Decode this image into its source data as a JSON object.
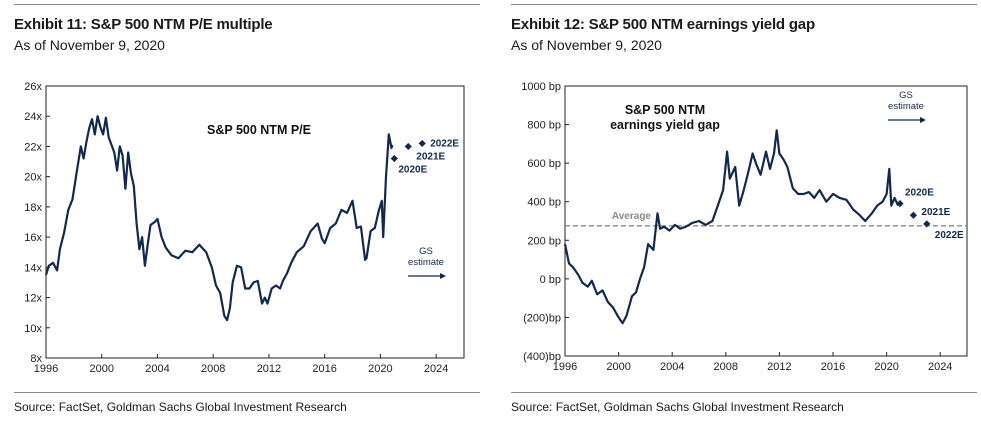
{
  "left": {
    "title": "Exhibit 11: S&P 500 NTM P/E multiple",
    "subtitle": "As of November 9, 2020",
    "source": "Source: FactSet, Goldman Sachs Global Investment Research",
    "chart_data": {
      "type": "line",
      "title": "S&P 500 NTM P/E",
      "xlim": [
        1996,
        2026
      ],
      "ylim": [
        8,
        26
      ],
      "x_ticks": [
        1996,
        2000,
        2004,
        2008,
        2012,
        2016,
        2020,
        2024
      ],
      "y_ticks": [
        8,
        10,
        12,
        14,
        16,
        18,
        20,
        22,
        24,
        26
      ],
      "y_tick_labels": [
        "8x",
        "10x",
        "12x",
        "14x",
        "16x",
        "18x",
        "20x",
        "22x",
        "24x",
        "26x"
      ],
      "series": [
        {
          "x": [
            1996.0,
            1996.2,
            1996.5,
            1996.8,
            1997.0,
            1997.3,
            1997.6,
            1997.9,
            1998.2,
            1998.5,
            1998.7,
            1998.9,
            1999.1,
            1999.3,
            1999.5,
            1999.7,
            1999.9,
            2000.1,
            2000.3,
            2000.5,
            2000.7,
            2000.9,
            2001.1,
            2001.3,
            2001.5,
            2001.7,
            2001.9,
            2002.1,
            2002.3,
            2002.5,
            2002.7,
            2002.9,
            2003.1,
            2003.3,
            2003.5,
            2003.8,
            2004.0,
            2004.3,
            2004.6,
            2005.0,
            2005.5,
            2006.0,
            2006.5,
            2007.0,
            2007.5,
            2007.9,
            2008.2,
            2008.5,
            2008.8,
            2009.0,
            2009.2,
            2009.4,
            2009.7,
            2010.0,
            2010.3,
            2010.6,
            2010.9,
            2011.2,
            2011.5,
            2011.7,
            2011.9,
            2012.2,
            2012.5,
            2012.8,
            2013.0,
            2013.3,
            2013.6,
            2014.0,
            2014.5,
            2015.0,
            2015.5,
            2015.8,
            2016.0,
            2016.4,
            2016.8,
            2017.2,
            2017.6,
            2018.0,
            2018.3,
            2018.6,
            2018.9,
            2019.0,
            2019.3,
            2019.6,
            2019.9,
            2020.1,
            2020.2,
            2020.4,
            2020.6,
            2020.8,
            2020.86
          ],
          "y": [
            13.5,
            14.1,
            14.3,
            13.8,
            15.2,
            16.3,
            17.8,
            18.5,
            20.3,
            22.0,
            21.2,
            22.3,
            23.2,
            23.8,
            22.8,
            24.0,
            23.3,
            22.8,
            23.9,
            22.6,
            22.1,
            21.6,
            20.4,
            22.0,
            21.4,
            19.2,
            21.6,
            20.2,
            19.4,
            16.9,
            15.2,
            16.0,
            14.1,
            15.5,
            16.8,
            17.0,
            17.2,
            16.0,
            15.3,
            14.8,
            14.6,
            15.1,
            15.0,
            15.5,
            15.0,
            14.0,
            12.8,
            12.3,
            10.8,
            10.5,
            11.3,
            13.0,
            14.1,
            14.0,
            12.6,
            12.6,
            13.0,
            13.1,
            11.6,
            12.0,
            11.6,
            12.6,
            12.8,
            12.6,
            13.1,
            13.6,
            14.3,
            15.0,
            15.4,
            16.4,
            16.9,
            15.9,
            15.6,
            16.6,
            16.9,
            17.8,
            17.6,
            18.4,
            16.6,
            16.7,
            14.5,
            14.6,
            16.4,
            16.6,
            17.8,
            18.4,
            16.0,
            20.0,
            22.8,
            21.9,
            22.1
          ]
        }
      ],
      "estimates": [
        {
          "label": "2020E",
          "x": 2021.0,
          "y": 21.2
        },
        {
          "label": "2021E",
          "x": 2022.0,
          "y": 22.0
        },
        {
          "label": "2022E",
          "x": 2023.0,
          "y": 22.2
        }
      ],
      "annotations": {
        "gs_line1": "GS",
        "gs_line2": "estimate"
      }
    }
  },
  "right": {
    "title": "Exhibit 12: S&P 500 NTM earnings yield gap",
    "subtitle": "As of November 9, 2020",
    "source": "Source: FactSet, Goldman Sachs Global Investment Research",
    "chart_data": {
      "type": "line",
      "title": "S&P 500 NTM earnings yield gap",
      "title_lines": [
        "S&P 500 NTM",
        "earnings yield gap"
      ],
      "xlim": [
        1996,
        2026
      ],
      "ylim": [
        -400,
        1000
      ],
      "x_ticks": [
        1996,
        2000,
        2004,
        2008,
        2012,
        2016,
        2020,
        2024
      ],
      "y_ticks": [
        -400,
        -200,
        0,
        200,
        400,
        600,
        800,
        1000
      ],
      "y_tick_labels": [
        "(400)bp",
        "(200)bp",
        "0 bp",
        "200 bp",
        "400 bp",
        "600 bp",
        "800 bp",
        "1000 bp"
      ],
      "average": {
        "label": "Average",
        "value": 275
      },
      "series": [
        {
          "x": [
            1996.0,
            1996.3,
            1996.6,
            1997.0,
            1997.3,
            1997.7,
            1998.0,
            1998.4,
            1998.8,
            1999.2,
            1999.6,
            2000.0,
            2000.3,
            2000.6,
            2001.0,
            2001.3,
            2001.6,
            2001.9,
            2002.2,
            2002.6,
            2002.9,
            2003.1,
            2003.4,
            2003.8,
            2004.2,
            2004.6,
            2005.0,
            2005.5,
            2006.0,
            2006.5,
            2007.0,
            2007.4,
            2007.8,
            2008.1,
            2008.3,
            2008.7,
            2009.0,
            2009.3,
            2009.7,
            2010.0,
            2010.3,
            2010.6,
            2011.0,
            2011.3,
            2011.6,
            2011.8,
            2012.0,
            2012.3,
            2012.6,
            2013.0,
            2013.4,
            2013.8,
            2014.2,
            2014.6,
            2015.0,
            2015.5,
            2016.0,
            2016.5,
            2017.0,
            2017.5,
            2018.0,
            2018.4,
            2018.9,
            2019.3,
            2019.7,
            2020.0,
            2020.2,
            2020.35,
            2020.6,
            2020.86
          ],
          "y": [
            180,
            80,
            60,
            20,
            -20,
            -40,
            -10,
            -80,
            -60,
            -120,
            -150,
            -200,
            -230,
            -190,
            -90,
            -70,
            0,
            60,
            180,
            150,
            340,
            260,
            270,
            250,
            280,
            260,
            270,
            290,
            300,
            280,
            300,
            380,
            460,
            660,
            520,
            580,
            380,
            450,
            560,
            650,
            590,
            540,
            660,
            570,
            650,
            770,
            650,
            620,
            580,
            470,
            440,
            440,
            450,
            420,
            460,
            400,
            440,
            420,
            410,
            360,
            330,
            300,
            340,
            380,
            400,
            440,
            570,
            380,
            420,
            380
          ]
        }
      ],
      "estimates": [
        {
          "label": "2020E",
          "x": 2021.0,
          "y": 390
        },
        {
          "label": "2021E",
          "x": 2022.0,
          "y": 330
        },
        {
          "label": "2022E",
          "x": 2023.0,
          "y": 285
        }
      ],
      "annotations": {
        "gs_line1": "GS",
        "gs_line2": "estimate"
      }
    }
  }
}
